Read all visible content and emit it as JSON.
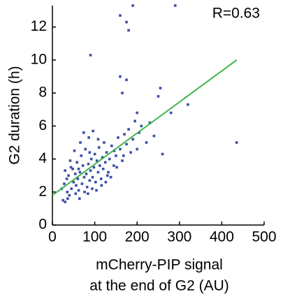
{
  "chart_data": {
    "type": "scatter",
    "xlabel": [
      "mCherry-PIP signal",
      "at the end of G2 (AU)"
    ],
    "ylabel": "G2 duration (h)",
    "annotation": "R=0.63",
    "xlim": [
      0,
      500
    ],
    "ylim": [
      0,
      13.3
    ],
    "xticks": [
      0,
      100,
      200,
      300,
      400,
      500
    ],
    "yticks": [
      0,
      2,
      4,
      6,
      8,
      10,
      12
    ],
    "color": "#3b4fa8",
    "x": [
      25,
      30,
      35,
      28,
      40,
      45,
      38,
      50,
      55,
      48,
      60,
      62,
      65,
      58,
      70,
      72,
      75,
      68,
      80,
      82,
      85,
      78,
      88,
      90,
      92,
      95,
      98,
      100,
      102,
      105,
      108,
      110,
      112,
      115,
      118,
      120,
      122,
      125,
      128,
      130,
      135,
      140,
      145,
      150,
      155,
      160,
      165,
      170,
      175,
      180,
      185,
      190,
      195,
      200,
      205,
      42,
      52,
      66,
      74,
      86,
      96,
      108,
      56,
      64,
      34,
      44,
      76,
      84,
      94,
      104,
      116,
      126,
      138,
      30,
      22,
      36,
      54,
      62,
      88,
      132,
      146,
      152,
      168,
      222,
      240,
      160,
      175,
      180,
      190,
      290,
      90,
      160,
      175,
      165,
      255,
      250,
      280,
      320,
      260,
      435,
      200,
      210,
      230
    ],
    "y": [
      1.5,
      1.4,
      2.0,
      2.5,
      1.8,
      2.2,
      3.0,
      2.6,
      1.9,
      3.4,
      2.8,
      2.1,
      3.2,
      3.8,
      2.5,
      3.6,
      2.9,
      4.2,
      3.1,
      2.3,
      3.7,
      4.6,
      2.7,
      3.3,
      4.0,
      2.9,
      3.5,
      4.3,
      2.6,
      3.9,
      3.2,
      4.7,
      3.6,
      2.8,
      4.1,
      3.4,
      5.0,
      3.8,
      4.4,
      3.0,
      4.0,
      4.8,
      3.6,
      4.2,
      5.3,
      4.6,
      3.9,
      5.5,
      4.9,
      5.8,
      4.4,
      5.2,
      6.3,
      4.6,
      5.6,
      3.9,
      4.5,
      5.0,
      5.6,
      5.3,
      5.7,
      5.2,
      2.4,
      1.6,
      2.8,
      3.5,
      2.0,
      1.9,
      2.2,
      2.1,
      2.4,
      2.6,
      2.9,
      3.3,
      2.2,
      1.6,
      3.1,
      3.4,
      4.4,
      3.2,
      4.5,
      3.5,
      4.2,
      5.0,
      5.4,
      12.7,
      12.3,
      11.8,
      13.3,
      13.3,
      10.3,
      9.0,
      8.8,
      8.0,
      8.3,
      7.8,
      6.8,
      7.3,
      4.3,
      5.0,
      6.8,
      6.0,
      6.2
    ],
    "fit": {
      "x": [
        0,
        435
      ],
      "y": [
        1.8,
        10
      ],
      "color": "#3cb44a"
    }
  }
}
